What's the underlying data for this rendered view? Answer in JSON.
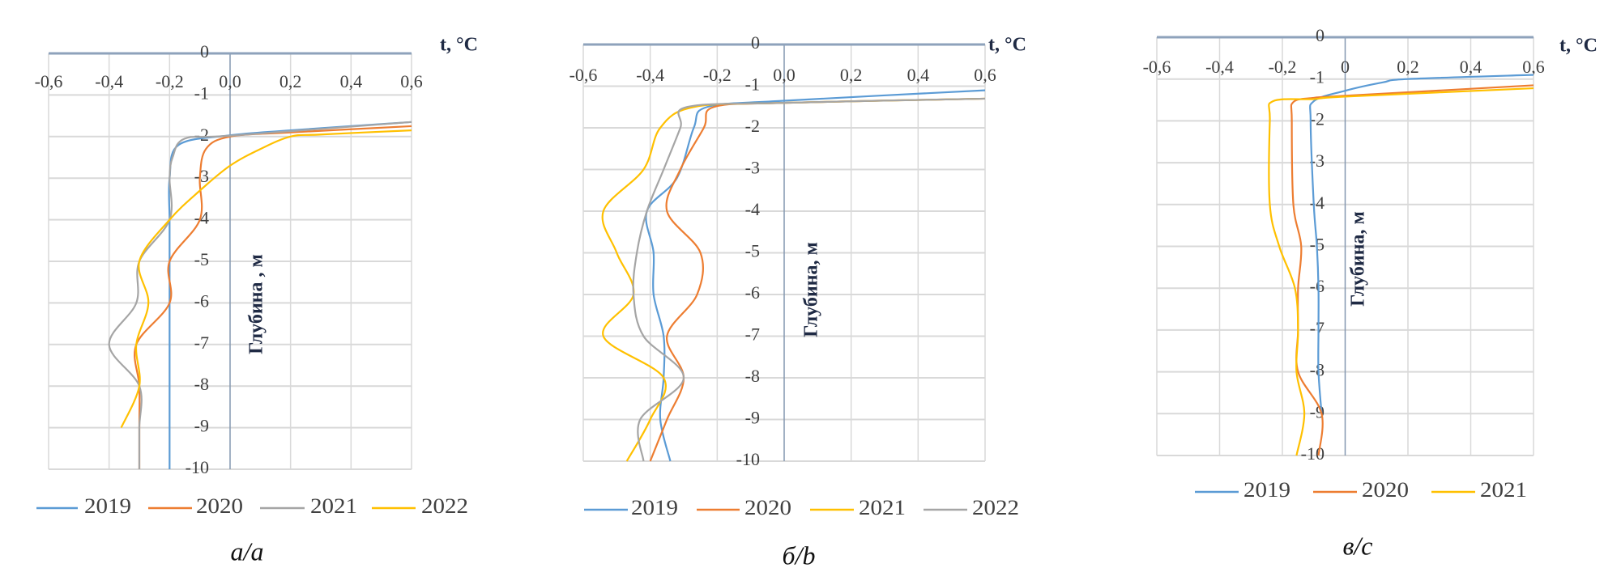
{
  "chart_data": [
    {
      "type": "line",
      "caption": "а/a",
      "xlabel": "t, °C",
      "ylabel": "Глубина , м",
      "xlim": [
        -0.6,
        0.6
      ],
      "ylim": [
        -10,
        0
      ],
      "grid": true,
      "x_axis_position": "top",
      "legend_position": "bottom",
      "x_tick_labels": [
        "-0,6",
        "-0,4",
        "-0,2",
        "0,0",
        "0,2",
        "0,4",
        "0,6"
      ],
      "y_tick_labels": [
        "0",
        "-1",
        "-2",
        "-3",
        "-4",
        "-5",
        "-6",
        "-7",
        "-8",
        "-9",
        "-10"
      ],
      "series": [
        {
          "name": "2019",
          "color": "#5b9bd5",
          "points": [
            [
              0.6,
              -1.65
            ],
            [
              0.2,
              -1.85
            ],
            [
              0,
              -1.97
            ],
            [
              -0.17,
              -2.2
            ],
            [
              -0.2,
              -3
            ],
            [
              -0.2,
              -4
            ],
            [
              -0.2,
              -5
            ],
            [
              -0.2,
              -6
            ],
            [
              -0.2,
              -7
            ],
            [
              -0.2,
              -8
            ],
            [
              -0.2,
              -9
            ],
            [
              -0.2,
              -10
            ]
          ]
        },
        {
          "name": "2020",
          "color": "#ed7d31",
          "points": [
            [
              0.6,
              -1.75
            ],
            [
              0.2,
              -1.9
            ],
            [
              0,
              -2
            ],
            [
              -0.08,
              -2.3
            ],
            [
              -0.1,
              -3
            ],
            [
              -0.1,
              -4
            ],
            [
              -0.2,
              -5
            ],
            [
              -0.2,
              -6
            ],
            [
              -0.31,
              -7
            ],
            [
              -0.3,
              -8
            ],
            [
              -0.3,
              -9
            ],
            [
              -0.3,
              -10
            ]
          ]
        },
        {
          "name": "2021",
          "color": "#a5a5a5",
          "points": [
            [
              0.6,
              -1.65
            ],
            [
              0,
              -1.98
            ],
            [
              -0.15,
              -2.05
            ],
            [
              -0.19,
              -2.5
            ],
            [
              -0.2,
              -3
            ],
            [
              -0.2,
              -4
            ],
            [
              -0.3,
              -5
            ],
            [
              -0.31,
              -6
            ],
            [
              -0.4,
              -7
            ],
            [
              -0.3,
              -8
            ],
            [
              -0.3,
              -9
            ],
            [
              -0.3,
              -10
            ]
          ]
        },
        {
          "name": "2022",
          "color": "#ffc000",
          "points": [
            [
              0.6,
              -1.85
            ],
            [
              0.3,
              -1.95
            ],
            [
              0.2,
              -2
            ],
            [
              0.1,
              -2.3
            ],
            [
              0,
              -2.7
            ],
            [
              -0.1,
              -3.3
            ],
            [
              -0.2,
              -4
            ],
            [
              -0.3,
              -5
            ],
            [
              -0.27,
              -6
            ],
            [
              -0.31,
              -7
            ],
            [
              -0.3,
              -8
            ],
            [
              -0.36,
              -9
            ]
          ]
        }
      ]
    },
    {
      "type": "line",
      "caption": "б/b",
      "xlabel": "t, °C",
      "ylabel": "Глубина, м",
      "xlim": [
        -0.6,
        0.6
      ],
      "ylim": [
        -10,
        0
      ],
      "grid": true,
      "x_axis_position": "top",
      "legend_position": "bottom",
      "x_tick_labels": [
        "-0,6",
        "-0,4",
        "-0,2",
        "0,0",
        "0,2",
        "0,4",
        "0,6"
      ],
      "y_tick_labels": [
        "0",
        "-1",
        "-2",
        "-3",
        "-4",
        "-5",
        "-6",
        "-7",
        "-8",
        "-9",
        "-10"
      ],
      "series": [
        {
          "name": "2019",
          "color": "#5b9bd5",
          "points": [
            [
              0.6,
              -1.1
            ],
            [
              0,
              -1.35
            ],
            [
              -0.23,
              -1.5
            ],
            [
              -0.27,
              -2
            ],
            [
              -0.32,
              -3.2
            ],
            [
              -0.41,
              -4
            ],
            [
              -0.39,
              -5
            ],
            [
              -0.39,
              -6
            ],
            [
              -0.36,
              -7
            ],
            [
              -0.36,
              -8
            ],
            [
              -0.37,
              -9
            ],
            [
              -0.34,
              -10
            ]
          ]
        },
        {
          "name": "2020",
          "color": "#ed7d31",
          "points": [
            [
              0.6,
              -1.3
            ],
            [
              0,
              -1.4
            ],
            [
              -0.21,
              -1.5
            ],
            [
              -0.24,
              -2
            ],
            [
              -0.31,
              -3
            ],
            [
              -0.35,
              -4
            ],
            [
              -0.25,
              -5
            ],
            [
              -0.26,
              -6
            ],
            [
              -0.35,
              -7
            ],
            [
              -0.3,
              -8
            ],
            [
              -0.35,
              -9
            ],
            [
              -0.4,
              -10
            ]
          ]
        },
        {
          "name": "2021",
          "color": "#ffc000",
          "points": [
            [
              0.6,
              -1.3
            ],
            [
              0,
              -1.4
            ],
            [
              -0.27,
              -1.5
            ],
            [
              -0.37,
              -2
            ],
            [
              -0.42,
              -3
            ],
            [
              -0.54,
              -4
            ],
            [
              -0.5,
              -5
            ],
            [
              -0.45,
              -6
            ],
            [
              -0.54,
              -7
            ],
            [
              -0.36,
              -8
            ],
            [
              -0.4,
              -9
            ],
            [
              -0.47,
              -10
            ]
          ]
        },
        {
          "name": "2022",
          "color": "#a5a5a5",
          "points": [
            [
              0.6,
              -1.3
            ],
            [
              0,
              -1.4
            ],
            [
              -0.29,
              -1.5
            ],
            [
              -0.31,
              -2
            ],
            [
              -0.36,
              -3
            ],
            [
              -0.41,
              -4
            ],
            [
              -0.44,
              -5
            ],
            [
              -0.45,
              -6
            ],
            [
              -0.42,
              -7
            ],
            [
              -0.3,
              -8
            ],
            [
              -0.43,
              -9
            ],
            [
              -0.42,
              -10
            ]
          ]
        }
      ]
    },
    {
      "type": "line",
      "caption": "в/c",
      "xlabel": "t, °C",
      "ylabel": "Глубина, м",
      "xlim": [
        -0.6,
        0.6
      ],
      "ylim": [
        -10,
        0
      ],
      "grid": true,
      "x_axis_position": "top",
      "legend_position": "bottom",
      "x_tick_labels": [
        "-0,6",
        "-0,4",
        "-0,2",
        "0",
        "0,2",
        "0,4",
        "0,6"
      ],
      "y_tick_labels": [
        "0",
        "-1",
        "-2",
        "-3",
        "-4",
        "-5",
        "-6",
        "-7",
        "-8",
        "-9",
        "-10"
      ],
      "series": [
        {
          "name": "2019",
          "color": "#5b9bd5",
          "points": [
            [
              0.6,
              -0.9
            ],
            [
              0.2,
              -1.0
            ],
            [
              0.12,
              -1.08
            ],
            [
              0,
              -1.28
            ],
            [
              -0.1,
              -1.53
            ],
            [
              -0.11,
              -2
            ],
            [
              -0.1,
              -4
            ],
            [
              -0.09,
              -5
            ],
            [
              -0.085,
              -6
            ],
            [
              -0.085,
              -7
            ],
            [
              -0.085,
              -8
            ],
            [
              -0.075,
              -9
            ]
          ]
        },
        {
          "name": "2020",
          "color": "#ed7d31",
          "points": [
            [
              0.6,
              -1.15
            ],
            [
              0,
              -1.4
            ],
            [
              -0.1,
              -1.45
            ],
            [
              -0.165,
              -1.55
            ],
            [
              -0.17,
              -2
            ],
            [
              -0.165,
              -4
            ],
            [
              -0.14,
              -5
            ],
            [
              -0.15,
              -6
            ],
            [
              -0.15,
              -7
            ],
            [
              -0.15,
              -8
            ],
            [
              -0.075,
              -9
            ],
            [
              -0.085,
              -10
            ]
          ]
        },
        {
          "name": "2021",
          "color": "#ffc000",
          "points": [
            [
              0.6,
              -1.22
            ],
            [
              0,
              -1.42
            ],
            [
              -0.1,
              -1.48
            ],
            [
              -0.23,
              -1.53
            ],
            [
              -0.24,
              -2
            ],
            [
              -0.24,
              -4
            ],
            [
              -0.21,
              -5
            ],
            [
              -0.16,
              -6
            ],
            [
              -0.15,
              -7
            ],
            [
              -0.155,
              -8
            ],
            [
              -0.13,
              -9
            ],
            [
              -0.155,
              -10
            ]
          ]
        }
      ]
    }
  ]
}
